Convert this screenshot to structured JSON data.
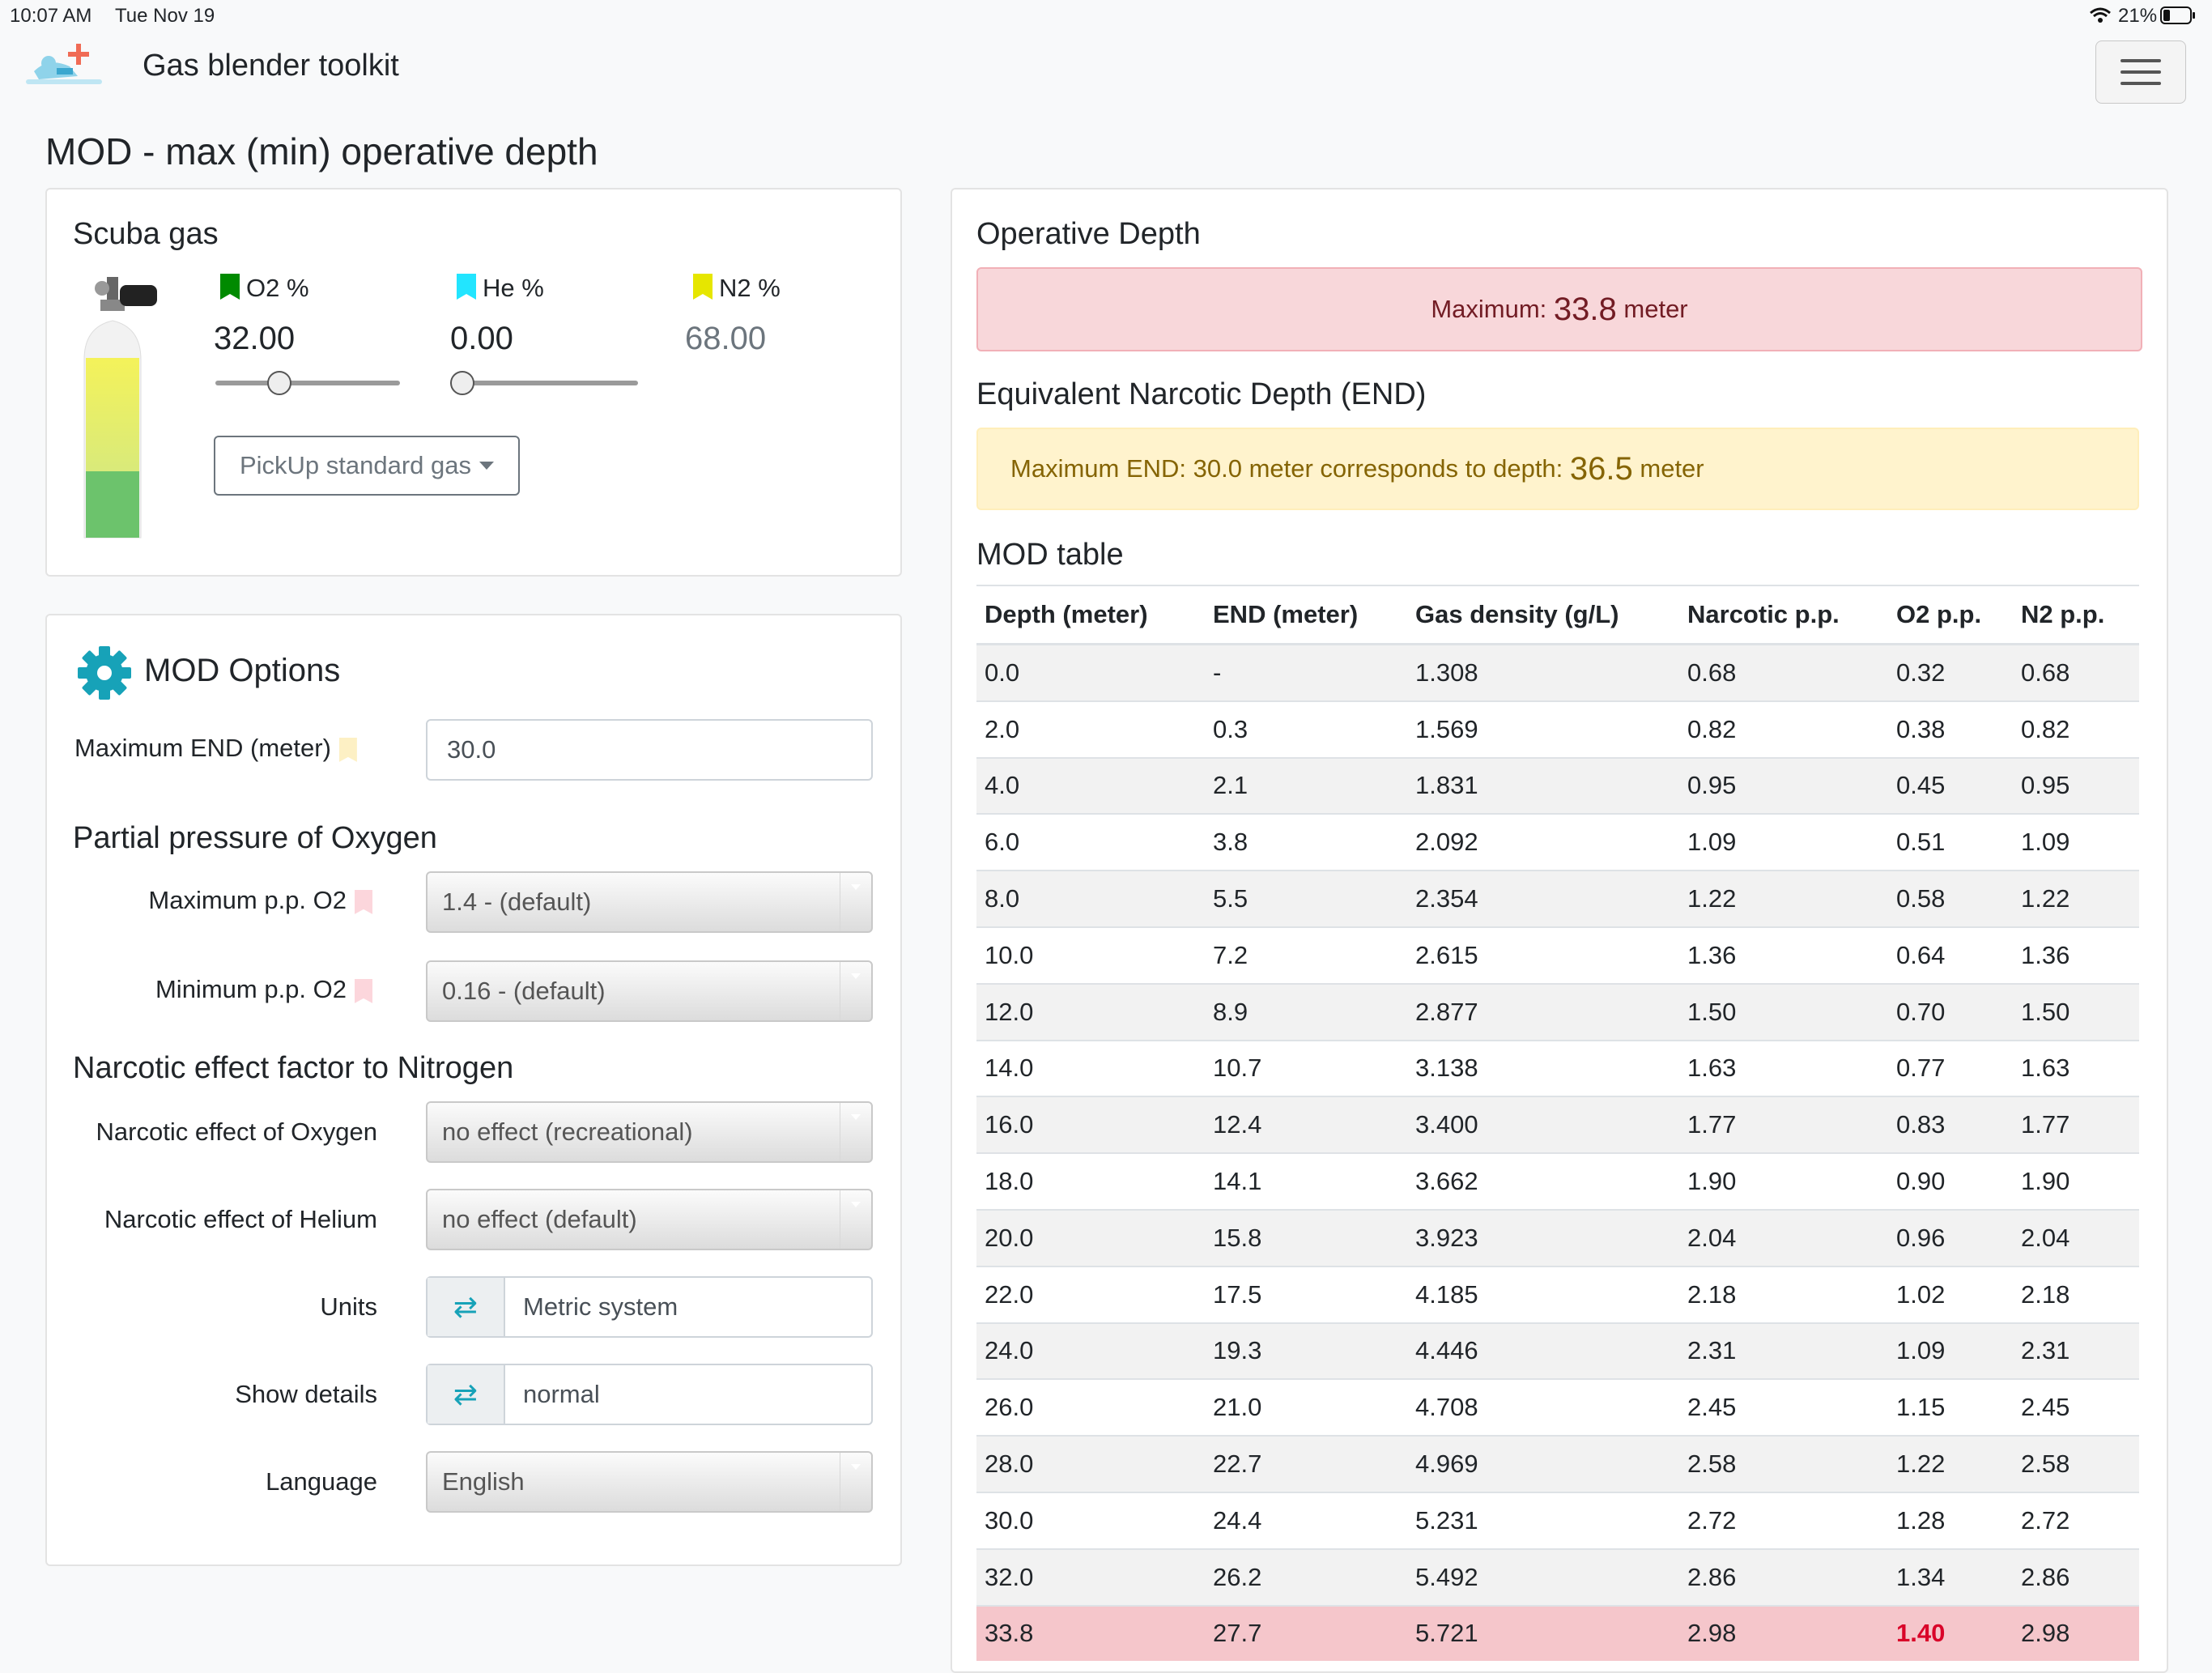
{
  "status_bar": {
    "time": "10:07 AM",
    "date": "Tue Nov 19",
    "battery": "21%"
  },
  "navbar": {
    "title": "Gas blender toolkit",
    "menu_icon": "hamburger-icon",
    "logo_icon": "diver-plus-icon"
  },
  "page": {
    "title": "MOD - max (min) operative depth"
  },
  "scuba_gas": {
    "title": "Scuba gas",
    "o2": {
      "label": "O2 %",
      "value": "32.00",
      "color": "#008a00",
      "slider": 0.32
    },
    "he": {
      "label": "He %",
      "value": "0.00",
      "color": "#22e5ff",
      "slider": 0.0
    },
    "n2": {
      "label": "N2 %",
      "value": "68.00",
      "color": "#e6e600"
    },
    "pickup_label": "PickUp standard gas"
  },
  "mod_options": {
    "title": "MOD Options",
    "gear_icon": "gear-icon",
    "max_end": {
      "label": "Maximum END (meter)",
      "value": "30.0",
      "flag_color": "#fdf0c4"
    },
    "pp_section": "Partial pressure of Oxygen",
    "max_pp": {
      "label": "Maximum p.p. O2",
      "value": "1.4 - (default)",
      "flag_color": "#fcd6dc"
    },
    "min_pp": {
      "label": "Minimum p.p. O2",
      "value": "0.16 - (default)",
      "flag_color": "#fcd6dc"
    },
    "narc_section": "Narcotic effect factor to Nitrogen",
    "narc_o2": {
      "label": "Narcotic effect of Oxygen",
      "value": "no effect (recreational)"
    },
    "narc_he": {
      "label": "Narcotic effect of Helium",
      "value": "no effect (default)"
    },
    "units": {
      "label": "Units",
      "value": "Metric system"
    },
    "details": {
      "label": "Show details",
      "value": "normal"
    },
    "language": {
      "label": "Language",
      "value": "English"
    }
  },
  "operative_depth": {
    "title": "Operative Depth",
    "max_prefix": "Maximum: ",
    "max_value": "33.8",
    "max_unit": " meter",
    "end_title": "Equivalent Narcotic Depth (END)",
    "end_prefix": "Maximum END: 30.0 meter corresponds to depth: ",
    "end_value": "36.5",
    "end_unit": " meter"
  },
  "mod_table": {
    "title": "MOD table",
    "headers": [
      "Depth (meter)",
      "END (meter)",
      "Gas density (g/L)",
      "Narcotic p.p.",
      "O2 p.p.",
      "N2 p.p."
    ],
    "rows": [
      [
        "0.0",
        "-",
        "1.308",
        "0.68",
        "0.32",
        "0.68"
      ],
      [
        "2.0",
        "0.3",
        "1.569",
        "0.82",
        "0.38",
        "0.82"
      ],
      [
        "4.0",
        "2.1",
        "1.831",
        "0.95",
        "0.45",
        "0.95"
      ],
      [
        "6.0",
        "3.8",
        "2.092",
        "1.09",
        "0.51",
        "1.09"
      ],
      [
        "8.0",
        "5.5",
        "2.354",
        "1.22",
        "0.58",
        "1.22"
      ],
      [
        "10.0",
        "7.2",
        "2.615",
        "1.36",
        "0.64",
        "1.36"
      ],
      [
        "12.0",
        "8.9",
        "2.877",
        "1.50",
        "0.70",
        "1.50"
      ],
      [
        "14.0",
        "10.7",
        "3.138",
        "1.63",
        "0.77",
        "1.63"
      ],
      [
        "16.0",
        "12.4",
        "3.400",
        "1.77",
        "0.83",
        "1.77"
      ],
      [
        "18.0",
        "14.1",
        "3.662",
        "1.90",
        "0.90",
        "1.90"
      ],
      [
        "20.0",
        "15.8",
        "3.923",
        "2.04",
        "0.96",
        "2.04"
      ],
      [
        "22.0",
        "17.5",
        "4.185",
        "2.18",
        "1.02",
        "2.18"
      ],
      [
        "24.0",
        "19.3",
        "4.446",
        "2.31",
        "1.09",
        "2.31"
      ],
      [
        "26.0",
        "21.0",
        "4.708",
        "2.45",
        "1.15",
        "2.45"
      ],
      [
        "28.0",
        "22.7",
        "4.969",
        "2.58",
        "1.22",
        "2.58"
      ],
      [
        "30.0",
        "24.4",
        "5.231",
        "2.72",
        "1.28",
        "2.72"
      ],
      [
        "32.0",
        "26.2",
        "5.492",
        "2.86",
        "1.34",
        "2.86"
      ],
      [
        "33.8",
        "27.7",
        "5.721",
        "2.98",
        "1.40",
        "2.98"
      ]
    ],
    "highlight_row": 17,
    "highlight_col": 4
  }
}
